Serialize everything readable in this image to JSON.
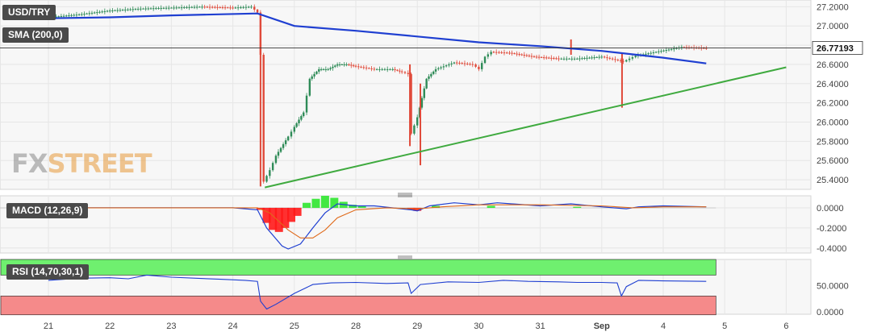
{
  "chart_data": {
    "type": "candlestick",
    "symbol": "USD/TRY",
    "last_price": "26.77193",
    "indicators": {
      "sma_label": "SMA (200,0)",
      "macd_label": "MACD (12,26,9)",
      "rsi_label": "RSI (14,70,30,1)"
    },
    "x_ticks": [
      "21",
      "22",
      "23",
      "24",
      "25",
      "28",
      "29",
      "30",
      "31",
      "Sep",
      "4",
      "5",
      "6"
    ],
    "price_axis": {
      "ticks": [
        "27.2000",
        "27.0000",
        "26.8000",
        "26.6000",
        "26.4000",
        "26.2000",
        "26.0000",
        "25.8000",
        "25.6000",
        "25.4000"
      ],
      "range": [
        25.3,
        27.27
      ]
    },
    "macd_axis": {
      "ticks": [
        "0.0000",
        "-0.2000",
        "-0.4000"
      ],
      "range": [
        -0.45,
        0.12
      ]
    },
    "rsi_axis": {
      "ticks": [
        "50.0000",
        "0.0000"
      ],
      "range": [
        -5,
        100
      ],
      "overbought": 70,
      "oversold": 30
    },
    "price_path": [
      [
        0,
        27.09
      ],
      [
        0.5,
        27.12
      ],
      [
        1.0,
        27.16
      ],
      [
        1.5,
        27.18
      ],
      [
        2.0,
        27.19
      ],
      [
        2.5,
        27.2
      ],
      [
        3.0,
        27.19
      ],
      [
        3.3,
        27.2
      ],
      [
        3.4,
        27.14
      ],
      [
        3.45,
        26.7
      ],
      [
        3.5,
        25.38
      ],
      [
        3.6,
        25.5
      ],
      [
        3.7,
        25.65
      ],
      [
        3.9,
        25.85
      ],
      [
        4.0,
        25.95
      ],
      [
        4.15,
        26.1
      ],
      [
        4.25,
        26.45
      ],
      [
        4.4,
        26.55
      ],
      [
        4.55,
        26.55
      ],
      [
        4.7,
        26.6
      ],
      [
        4.85,
        26.6
      ],
      [
        5.0,
        26.58
      ],
      [
        5.3,
        26.55
      ],
      [
        5.6,
        26.55
      ],
      [
        5.75,
        26.52
      ],
      [
        5.85,
        26.5
      ],
      [
        5.9,
        25.88
      ],
      [
        6.0,
        26.05
      ],
      [
        6.15,
        26.45
      ],
      [
        6.3,
        26.55
      ],
      [
        6.6,
        26.62
      ],
      [
        6.9,
        26.6
      ],
      [
        7.0,
        26.55
      ],
      [
        7.1,
        26.68
      ],
      [
        7.2,
        26.73
      ],
      [
        7.5,
        26.72
      ],
      [
        7.9,
        26.68
      ],
      [
        8.3,
        26.66
      ],
      [
        8.6,
        26.66
      ],
      [
        9.0,
        26.68
      ],
      [
        9.35,
        26.63
      ],
      [
        9.45,
        26.66
      ],
      [
        9.55,
        26.69
      ],
      [
        9.8,
        26.72
      ],
      [
        10.3,
        26.78
      ],
      [
        10.7,
        26.77
      ]
    ],
    "wicks": [
      {
        "x": 3.45,
        "low": 25.33,
        "high": 27.14
      },
      {
        "x": 5.88,
        "low": 25.75,
        "high": 26.6
      },
      {
        "x": 6.05,
        "low": 25.55,
        "high": 26.4
      },
      {
        "x": 8.5,
        "low": 26.7,
        "high": 26.86
      },
      {
        "x": 9.33,
        "low": 26.15,
        "high": 26.72
      }
    ],
    "sma_200": [
      [
        0,
        27.08
      ],
      [
        1.0,
        27.09
      ],
      [
        2.0,
        27.11
      ],
      [
        3.4,
        27.13
      ],
      [
        4.0,
        27.0
      ],
      [
        5.0,
        26.95
      ],
      [
        6.0,
        26.89
      ],
      [
        7.0,
        26.83
      ],
      [
        8.0,
        26.79
      ],
      [
        9.0,
        26.74
      ],
      [
        10.0,
        26.67
      ],
      [
        10.7,
        26.61
      ]
    ],
    "trendline": [
      [
        3.52,
        25.32
      ],
      [
        12.0,
        26.57
      ]
    ],
    "macd": [
      [
        0,
        0.0
      ],
      [
        3.0,
        0.0
      ],
      [
        3.4,
        -0.02
      ],
      [
        3.55,
        -0.2
      ],
      [
        3.8,
        -0.38
      ],
      [
        3.9,
        -0.41
      ],
      [
        4.1,
        -0.36
      ],
      [
        4.3,
        -0.2
      ],
      [
        4.5,
        -0.05
      ],
      [
        4.7,
        0.04
      ],
      [
        5.0,
        0.02
      ],
      [
        5.3,
        0.02
      ],
      [
        5.9,
        -0.02
      ],
      [
        6.0,
        -0.03
      ],
      [
        6.2,
        0.02
      ],
      [
        6.6,
        0.05
      ],
      [
        7.0,
        0.03
      ],
      [
        7.3,
        0.05
      ],
      [
        8.0,
        0.02
      ],
      [
        8.5,
        0.04
      ],
      [
        9.0,
        0.01
      ],
      [
        9.4,
        -0.01
      ],
      [
        9.6,
        0.01
      ],
      [
        10.0,
        0.02
      ],
      [
        10.7,
        0.01
      ]
    ],
    "macd_signal": [
      [
        0,
        0.0
      ],
      [
        3.4,
        0.0
      ],
      [
        3.6,
        -0.05
      ],
      [
        3.9,
        -0.22
      ],
      [
        4.1,
        -0.3
      ],
      [
        4.3,
        -0.3
      ],
      [
        4.5,
        -0.22
      ],
      [
        4.7,
        -0.1
      ],
      [
        5.0,
        -0.02
      ],
      [
        5.5,
        0.0
      ],
      [
        6.0,
        -0.01
      ],
      [
        6.4,
        0.01
      ],
      [
        7.0,
        0.03
      ],
      [
        8.0,
        0.03
      ],
      [
        9.0,
        0.02
      ],
      [
        9.5,
        0.0
      ],
      [
        10.0,
        0.01
      ],
      [
        10.7,
        0.01
      ]
    ],
    "macd_hist": [
      [
        3.45,
        -0.02
      ],
      [
        3.55,
        -0.15
      ],
      [
        3.65,
        -0.22
      ],
      [
        3.75,
        -0.24
      ],
      [
        3.85,
        -0.2
      ],
      [
        3.95,
        -0.14
      ],
      [
        4.05,
        -0.08
      ],
      [
        4.2,
        0.05
      ],
      [
        4.35,
        0.09
      ],
      [
        4.5,
        0.12
      ],
      [
        4.65,
        0.1
      ],
      [
        4.8,
        0.06
      ],
      [
        4.95,
        0.03
      ],
      [
        5.1,
        0.02
      ],
      [
        5.9,
        -0.02
      ],
      [
        6.0,
        -0.03
      ],
      [
        6.3,
        0.02
      ],
      [
        7.2,
        0.02
      ],
      [
        8.6,
        0.01
      ]
    ],
    "rsi": [
      [
        0,
        60
      ],
      [
        0.5,
        64
      ],
      [
        1.0,
        65
      ],
      [
        1.3,
        63
      ],
      [
        1.6,
        70
      ],
      [
        2.0,
        66
      ],
      [
        2.4,
        64
      ],
      [
        2.8,
        62
      ],
      [
        3.2,
        60
      ],
      [
        3.4,
        58
      ],
      [
        3.45,
        20
      ],
      [
        3.55,
        5
      ],
      [
        3.7,
        14
      ],
      [
        4.0,
        35
      ],
      [
        4.3,
        52
      ],
      [
        4.6,
        55
      ],
      [
        5.0,
        56
      ],
      [
        5.5,
        54
      ],
      [
        5.85,
        55
      ],
      [
        5.9,
        35
      ],
      [
        6.05,
        52
      ],
      [
        6.5,
        57
      ],
      [
        7.0,
        56
      ],
      [
        7.4,
        60
      ],
      [
        7.8,
        58
      ],
      [
        8.3,
        57
      ],
      [
        8.6,
        56
      ],
      [
        9.0,
        56
      ],
      [
        9.25,
        55
      ],
      [
        9.32,
        30
      ],
      [
        9.4,
        48
      ],
      [
        9.6,
        60
      ],
      [
        10.0,
        59
      ],
      [
        10.7,
        58
      ]
    ]
  }
}
